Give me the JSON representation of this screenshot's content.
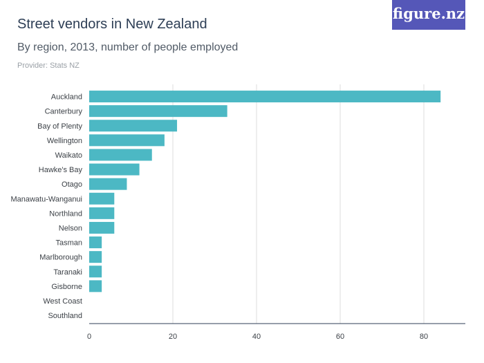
{
  "title": "Street vendors in New Zealand",
  "subtitle": "By region, 2013, number of people employed",
  "provider": "Provider: Stats NZ",
  "logo": "figure.nz",
  "colors": {
    "bar": "#4cb8c4",
    "grid": "#dddddd",
    "axis": "#2d3e55",
    "logo_bg": "#5557b8"
  },
  "chart_data": {
    "type": "bar",
    "orientation": "horizontal",
    "categories": [
      "Auckland",
      "Canterbury",
      "Bay of Plenty",
      "Wellington",
      "Waikato",
      "Hawke's Bay",
      "Otago",
      "Manawatu-Wanganui",
      "Northland",
      "Nelson",
      "Tasman",
      "Marlborough",
      "Taranaki",
      "Gisborne",
      "West Coast",
      "Southland"
    ],
    "values": [
      84,
      33,
      21,
      18,
      15,
      12,
      9,
      6,
      6,
      6,
      3,
      3,
      3,
      3,
      0,
      0
    ],
    "xticks": [
      0,
      20,
      40,
      60,
      80
    ],
    "xlim": [
      0,
      90
    ],
    "grid": true
  }
}
